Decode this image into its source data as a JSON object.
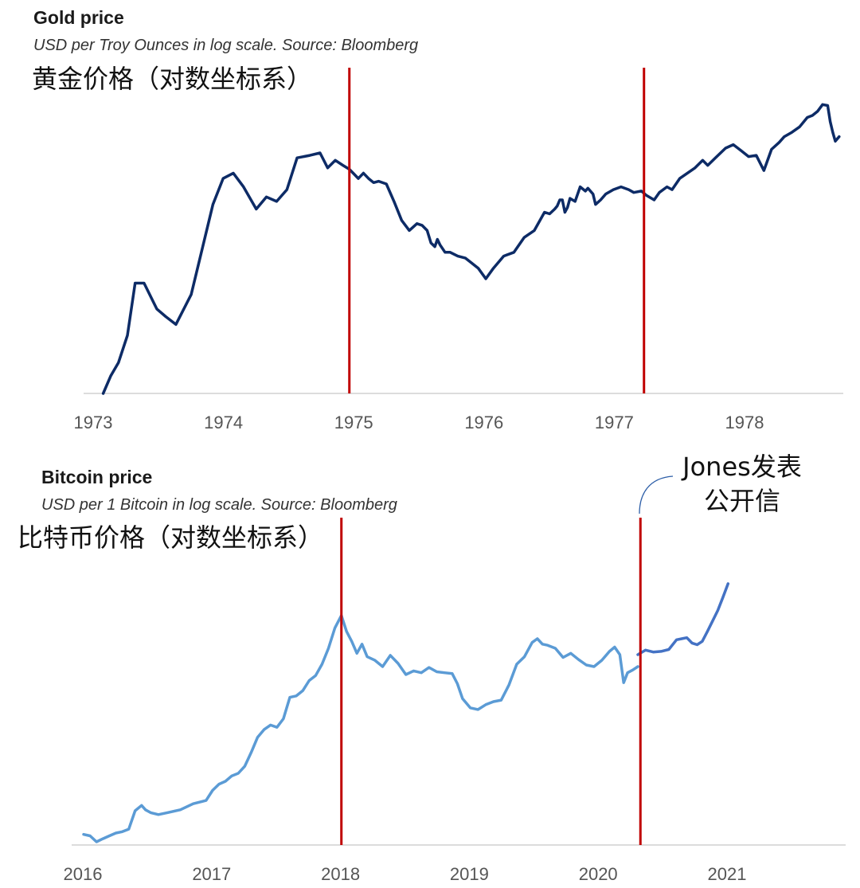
{
  "chart_data": [
    {
      "type": "line",
      "title": "Gold price",
      "subtitle": "USD per Troy Ounces in log scale. Source: Bloomberg",
      "annotation_cn": "黄金价格（对数坐标系）",
      "x_ticks": [
        "1973",
        "1974",
        "1975",
        "1976",
        "1977",
        "1978"
      ],
      "xlim": [
        1973,
        1978.85
      ],
      "ylim_log": [
        58,
        260
      ],
      "scale": "log",
      "grid": false,
      "series": [
        {
          "color": "#0d2b66",
          "x": [
            1973.06,
            1973.12,
            1973.18,
            1973.25,
            1973.31,
            1973.38,
            1973.48,
            1973.55,
            1973.63,
            1973.75,
            1973.83,
            1973.92,
            1974.0,
            1974.08,
            1974.16,
            1974.26,
            1974.34,
            1974.42,
            1974.5,
            1974.58,
            1974.68,
            1974.76,
            1974.82,
            1974.88,
            1974.94,
            1974.99,
            1975.02,
            1975.06,
            1975.1,
            1975.14,
            1975.18,
            1975.22,
            1975.28,
            1975.34,
            1975.4,
            1975.46,
            1975.52,
            1975.56,
            1975.6,
            1975.63,
            1975.66,
            1975.68,
            1975.7,
            1975.74,
            1975.78,
            1975.84,
            1975.9,
            1975.94,
            1976.0,
            1976.06,
            1976.12,
            1976.2,
            1976.28,
            1976.36,
            1976.44,
            1976.52,
            1976.56,
            1976.6,
            1976.62,
            1976.64,
            1976.66,
            1976.68,
            1976.7,
            1976.72,
            1976.76,
            1976.8,
            1976.84,
            1976.86,
            1976.9,
            1976.92,
            1976.96,
            1977.0,
            1977.06,
            1977.12,
            1977.18,
            1977.22,
            1977.28,
            1977.32,
            1977.38,
            1977.42,
            1977.48,
            1977.52,
            1977.58,
            1977.64,
            1977.7,
            1977.76,
            1977.8,
            1977.86,
            1977.94,
            1978.0,
            1978.06,
            1978.12,
            1978.18,
            1978.24,
            1978.3,
            1978.36,
            1978.4,
            1978.46,
            1978.52,
            1978.58,
            1978.62,
            1978.66,
            1978.7,
            1978.74,
            1978.76,
            1978.78,
            1978.8,
            1978.83
          ],
          "y": [
            58,
            63,
            67,
            76,
            97,
            97,
            86,
            83,
            80,
            92,
            112,
            140,
            158,
            162,
            152,
            137,
            145,
            142,
            150,
            174,
            176,
            178,
            166,
            172,
            168,
            165,
            162,
            158,
            162,
            158,
            155,
            156,
            154,
            142,
            130,
            124,
            128,
            127,
            124,
            117,
            115,
            119,
            116,
            112,
            112,
            110,
            109,
            107,
            104,
            99,
            104,
            110,
            112,
            120,
            124,
            135,
            134,
            137,
            139,
            143,
            143,
            135,
            138,
            144,
            142,
            152,
            149,
            151,
            147,
            140,
            143,
            147,
            150,
            152,
            150,
            148,
            149,
            146,
            143,
            148,
            152,
            150,
            158,
            162,
            166,
            172,
            168,
            174,
            182,
            185,
            180,
            175,
            176,
            164,
            181,
            187,
            192,
            196,
            201,
            210,
            212,
            216,
            223,
            222,
            206,
            196,
            188,
            192
          ]
        }
      ],
      "markers_x": [
        1974.99,
        1977.3
      ]
    },
    {
      "type": "line",
      "title": "Bitcoin price",
      "subtitle": "USD per 1 Bitcoin in log scale. Source: Bloomberg",
      "annotation_cn": "比特币价格（对数坐标系）",
      "callout": [
        "Jones发表",
        "公开信"
      ],
      "x_ticks": [
        "2016",
        "2017",
        "2018",
        "2019",
        "2020",
        "2021"
      ],
      "xlim": [
        2016,
        2021.9
      ],
      "ylim_log": [
        360,
        45000
      ],
      "scale": "log",
      "grid": false,
      "series": [
        {
          "color": "#5b9bd5",
          "x": [
            2016.0,
            2016.05,
            2016.1,
            2016.15,
            2016.2,
            2016.25,
            2016.3,
            2016.35,
            2016.4,
            2016.45,
            2016.48,
            2016.52,
            2016.58,
            2016.65,
            2016.75,
            2016.85,
            2016.95,
            2017.0,
            2017.05,
            2017.1,
            2017.15,
            2017.2,
            2017.25,
            2017.3,
            2017.35,
            2017.4,
            2017.45,
            2017.5,
            2017.55,
            2017.6,
            2017.65,
            2017.7,
            2017.75,
            2017.8,
            2017.85,
            2017.9,
            2017.95,
            2018.0,
            2018.04,
            2018.08,
            2018.12,
            2018.16,
            2018.2,
            2018.26,
            2018.32,
            2018.38,
            2018.44,
            2018.5,
            2018.56,
            2018.62,
            2018.68,
            2018.74,
            2018.8,
            2018.86,
            2018.9,
            2018.94,
            2019.0,
            2019.06,
            2019.12,
            2019.18,
            2019.24,
            2019.3,
            2019.36,
            2019.42,
            2019.48,
            2019.52,
            2019.56,
            2019.6,
            2019.66,
            2019.72,
            2019.78,
            2019.84,
            2019.9,
            2019.96,
            2020.02,
            2020.08,
            2020.12,
            2020.16,
            2020.19,
            2020.22,
            2020.26,
            2020.3
          ],
          "y": [
            430,
            420,
            380,
            400,
            420,
            440,
            450,
            470,
            640,
            700,
            650,
            620,
            600,
            620,
            650,
            720,
            760,
            900,
            1000,
            1050,
            1150,
            1200,
            1350,
            1700,
            2200,
            2500,
            2700,
            2600,
            3000,
            4300,
            4400,
            4800,
            5700,
            6200,
            7500,
            9800,
            13800,
            17000,
            13000,
            11000,
            9000,
            10500,
            8500,
            8000,
            7200,
            8700,
            7600,
            6300,
            6700,
            6500,
            7100,
            6600,
            6500,
            6400,
            5400,
            4200,
            3600,
            3500,
            3800,
            4000,
            4100,
            5300,
            7500,
            8500,
            10800,
            11500,
            10500,
            10300,
            9800,
            8400,
            9000,
            8100,
            7400,
            7200,
            8000,
            9300,
            10000,
            8800,
            5500,
            6500,
            6800,
            7200
          ]
        },
        {
          "color": "#4472c4",
          "x": [
            2020.3,
            2020.36,
            2020.42,
            2020.48,
            2020.54,
            2020.6,
            2020.64,
            2020.68,
            2020.72,
            2020.76,
            2020.8,
            2020.84,
            2020.88,
            2020.92,
            2020.96,
            2021.0
          ],
          "y": [
            8800,
            9500,
            9200,
            9300,
            9600,
            11300,
            11500,
            11700,
            10700,
            10400,
            11000,
            13000,
            15500,
            18500,
            23000,
            29000
          ]
        }
      ],
      "markers_x": [
        2018.0,
        2020.32
      ]
    }
  ]
}
